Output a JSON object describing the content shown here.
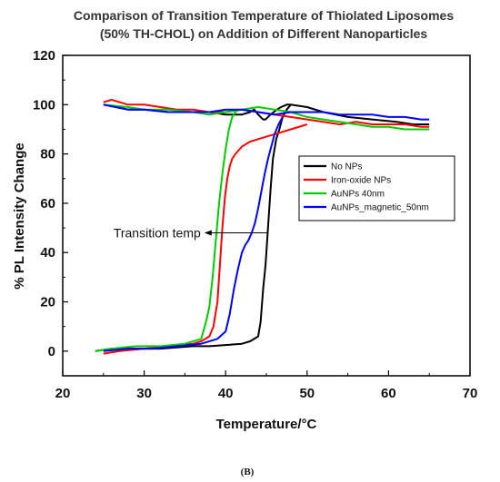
{
  "chart_data": {
    "type": "line",
    "title_line1": "Comparison of Transition Temperature of Thiolated Liposomes",
    "title_line2": "(50% TH-CHOL) on Addition of Different Nanoparticles",
    "xlabel": "Temperature/°C",
    "ylabel": "% PL Intensity Change",
    "xlim": [
      20,
      70
    ],
    "ylim": [
      -10,
      120
    ],
    "xticks": [
      20,
      30,
      40,
      50,
      60,
      70
    ],
    "yticks": [
      0,
      20,
      40,
      60,
      80,
      100,
      120
    ],
    "grid": false,
    "legend_position": "right",
    "series": [
      {
        "name": "No NPs",
        "color": "#000000",
        "x": [
          25,
          28,
          30,
          33,
          36,
          38,
          40,
          42,
          43,
          43.5,
          44,
          44.3,
          44.6,
          44.9,
          45.2,
          45.5,
          45.9,
          46.3,
          46.8,
          47.5,
          48,
          50,
          52,
          55,
          58,
          61,
          63,
          65
        ],
        "y": [
          100,
          98,
          98,
          97,
          97,
          97,
          96,
          96,
          97,
          98,
          96,
          95,
          94,
          94,
          95,
          96,
          97,
          98,
          99,
          100,
          100,
          99,
          97,
          95,
          94,
          93,
          92,
          92
        ],
        "x2": [
          24,
          26,
          28,
          30,
          32,
          34,
          36,
          38,
          40,
          42,
          43,
          44,
          44.3,
          44.6,
          44.9,
          45.2,
          45.5,
          45.8,
          46.2,
          46.6,
          47,
          47.5,
          48
        ],
        "y2": [
          0,
          1,
          1,
          1,
          1,
          1.5,
          2,
          2,
          2.5,
          3,
          4,
          6,
          12,
          25,
          35,
          50,
          65,
          78,
          86,
          90,
          95,
          98,
          100
        ]
      },
      {
        "name": "Iron-oxide NPs",
        "color": "#ff0000",
        "x": [
          25,
          26,
          28,
          30,
          32,
          34,
          36,
          38,
          40,
          42,
          44,
          46,
          48,
          50,
          52,
          54,
          56,
          58,
          60,
          62,
          64,
          65
        ],
        "y": [
          101,
          102,
          100,
          100,
          99,
          98,
          98,
          97,
          97,
          98,
          97,
          96,
          95,
          94,
          93,
          92,
          93,
          92,
          92,
          92,
          91,
          91
        ],
        "x2": [
          25,
          27,
          30,
          33,
          36,
          37,
          38,
          38.5,
          39,
          39.3,
          39.6,
          39.9,
          40.2,
          40.5,
          40.8,
          41.2,
          42,
          43,
          44,
          45,
          46,
          47,
          48,
          50
        ],
        "y2": [
          -1,
          0,
          1,
          2,
          3,
          4,
          6,
          10,
          20,
          35,
          50,
          62,
          70,
          75,
          78,
          80,
          83,
          85,
          86,
          87,
          88,
          89,
          90,
          92
        ]
      },
      {
        "name": "AuNPs 40nm",
        "color": "#00cc00",
        "x": [
          25,
          28,
          30,
          33,
          36,
          38,
          40,
          42,
          44,
          46,
          48,
          50,
          52,
          54,
          56,
          58,
          60,
          62,
          64,
          65
        ],
        "y": [
          100,
          99,
          98,
          98,
          97,
          96,
          97,
          98,
          99,
          98,
          97,
          95,
          94,
          93,
          92,
          91,
          91,
          90,
          90,
          90
        ],
        "x2": [
          24,
          26,
          29,
          32,
          35,
          37,
          37.6,
          38,
          38.4,
          38.8,
          39.2,
          39.6,
          40,
          40.4,
          40.8,
          41.2,
          41.6
        ],
        "y2": [
          0,
          1,
          2,
          2,
          3,
          5,
          12,
          18,
          30,
          45,
          60,
          72,
          82,
          90,
          95,
          97,
          98
        ]
      },
      {
        "name": "AuNPs_magnetic_50nm",
        "color": "#0000ff",
        "x": [
          25,
          28,
          30,
          33,
          36,
          38,
          40,
          42,
          44,
          46,
          48,
          50,
          52,
          54,
          56,
          58,
          60,
          62,
          64,
          65
        ],
        "y": [
          100,
          98,
          98,
          97,
          97,
          97,
          98,
          98,
          97,
          96,
          97,
          97,
          97,
          96,
          96,
          96,
          95,
          95,
          94,
          94
        ],
        "x2": [
          25,
          28,
          31,
          34,
          37,
          39,
          40,
          40.5,
          41,
          41.5,
          42,
          42.4,
          42.8,
          43.2,
          43.6,
          44,
          44.4,
          44.8,
          45.2,
          45.6,
          46,
          46.5,
          47
        ],
        "y2": [
          0,
          1,
          1,
          2,
          3,
          5,
          8,
          15,
          25,
          33,
          40,
          43,
          45,
          48,
          52,
          58,
          65,
          72,
          78,
          83,
          88,
          92,
          95
        ]
      }
    ],
    "annotation": {
      "text": "Transition temp",
      "arrow_from": [
        45.2,
        48
      ],
      "arrow_to": [
        37.5,
        48
      ]
    },
    "caption": "(B)"
  }
}
